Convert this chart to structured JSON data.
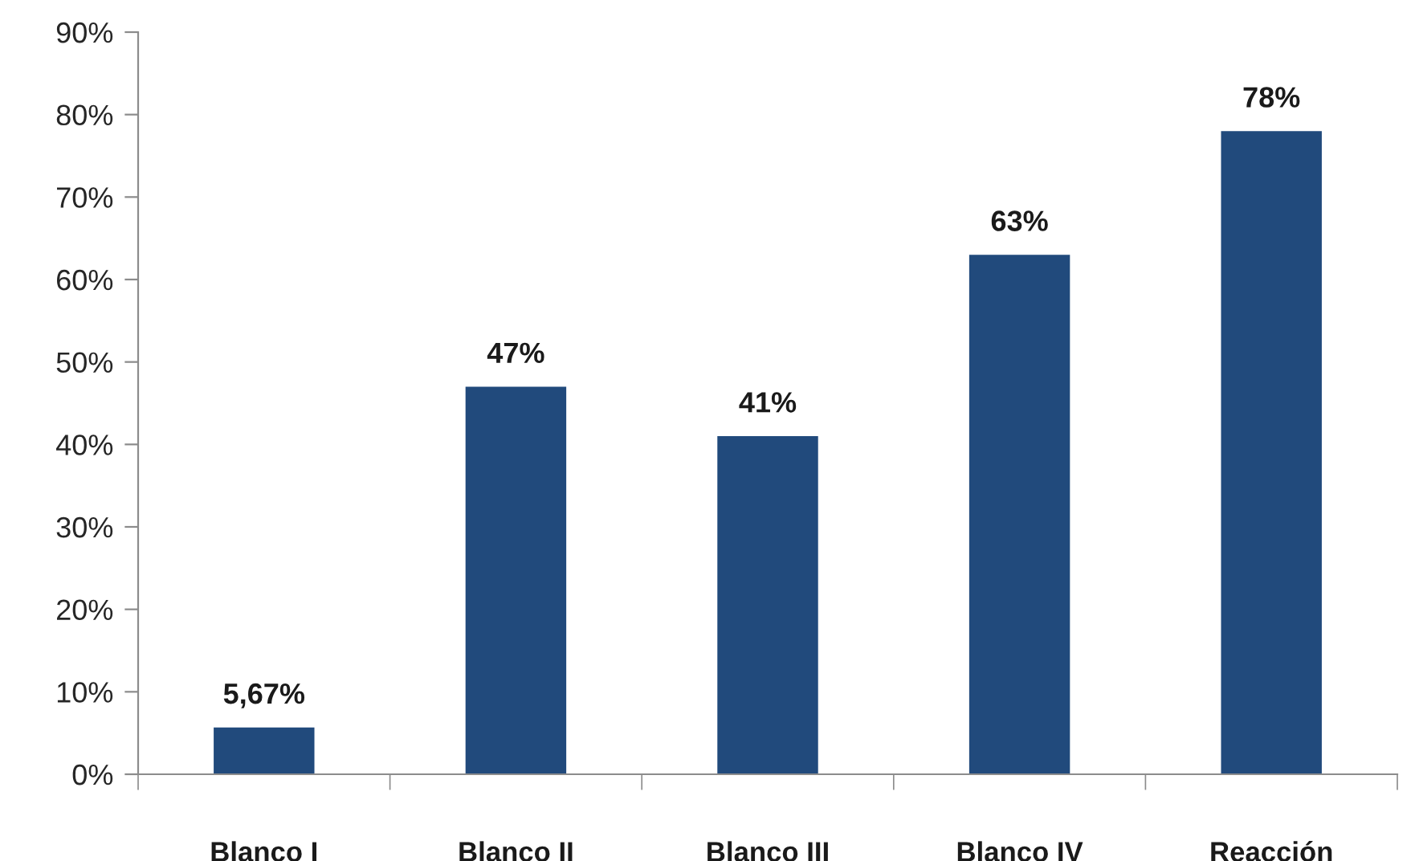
{
  "chart_data": {
    "type": "bar",
    "categories": [
      "Blanco I",
      "Blanco II",
      "Blanco III",
      "Blanco IV",
      "Reacción"
    ],
    "values": [
      5.67,
      47,
      41,
      63,
      78
    ],
    "value_labels": [
      "5,67%",
      "47%",
      "41%",
      "63%",
      "78%"
    ],
    "color": "#214a7c",
    "ylim": [
      0,
      90
    ],
    "yticks": [
      {
        "value": 0,
        "label": "0%"
      },
      {
        "value": 10,
        "label": "10%"
      },
      {
        "value": 20,
        "label": "20%"
      },
      {
        "value": 30,
        "label": "30%"
      },
      {
        "value": 40,
        "label": "40%"
      },
      {
        "value": 50,
        "label": "50%"
      },
      {
        "value": 60,
        "label": "60%"
      },
      {
        "value": 70,
        "label": "70%"
      },
      {
        "value": 80,
        "label": "80%"
      },
      {
        "value": 90,
        "label": "90%"
      }
    ],
    "grid": false,
    "legend": false
  }
}
